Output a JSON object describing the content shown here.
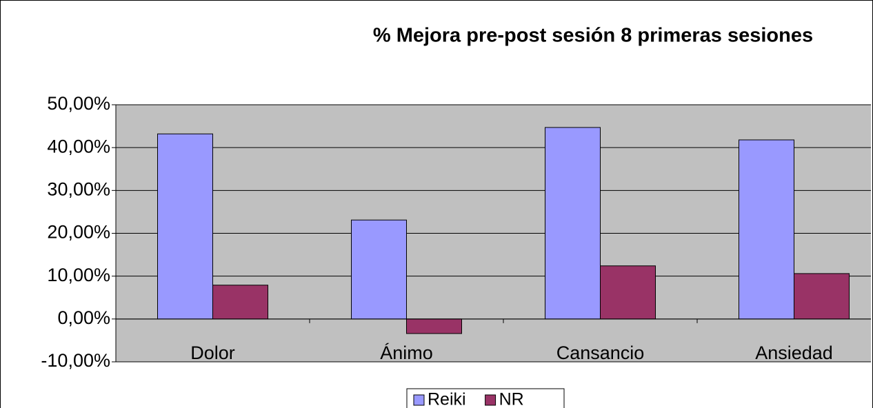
{
  "chart_data": {
    "type": "bar",
    "title": "% Mejora pre-post sesión 8 primeras sesiones",
    "categories": [
      "Dolor",
      "Ánimo",
      "Cansancio",
      "Ansiedad"
    ],
    "series": [
      {
        "name": "Reiki",
        "color": "#9999ff",
        "values": [
          43.2,
          23.1,
          44.7,
          41.8
        ]
      },
      {
        "name": "NR",
        "color": "#993366",
        "values": [
          7.9,
          -3.4,
          12.4,
          10.6
        ]
      }
    ],
    "ylim": [
      -10,
      50
    ],
    "yticks": [
      {
        "value": -10,
        "label": "-10,00%"
      },
      {
        "value": 0,
        "label": "0,00%"
      },
      {
        "value": 10,
        "label": "10,00%"
      },
      {
        "value": 20,
        "label": "20,00%"
      },
      {
        "value": 30,
        "label": "30,00%"
      },
      {
        "value": 40,
        "label": "40,00%"
      },
      {
        "value": 50,
        "label": "50,00%"
      }
    ],
    "grid": true,
    "plot_background": "#c0c0c0",
    "legend": "bottom"
  }
}
